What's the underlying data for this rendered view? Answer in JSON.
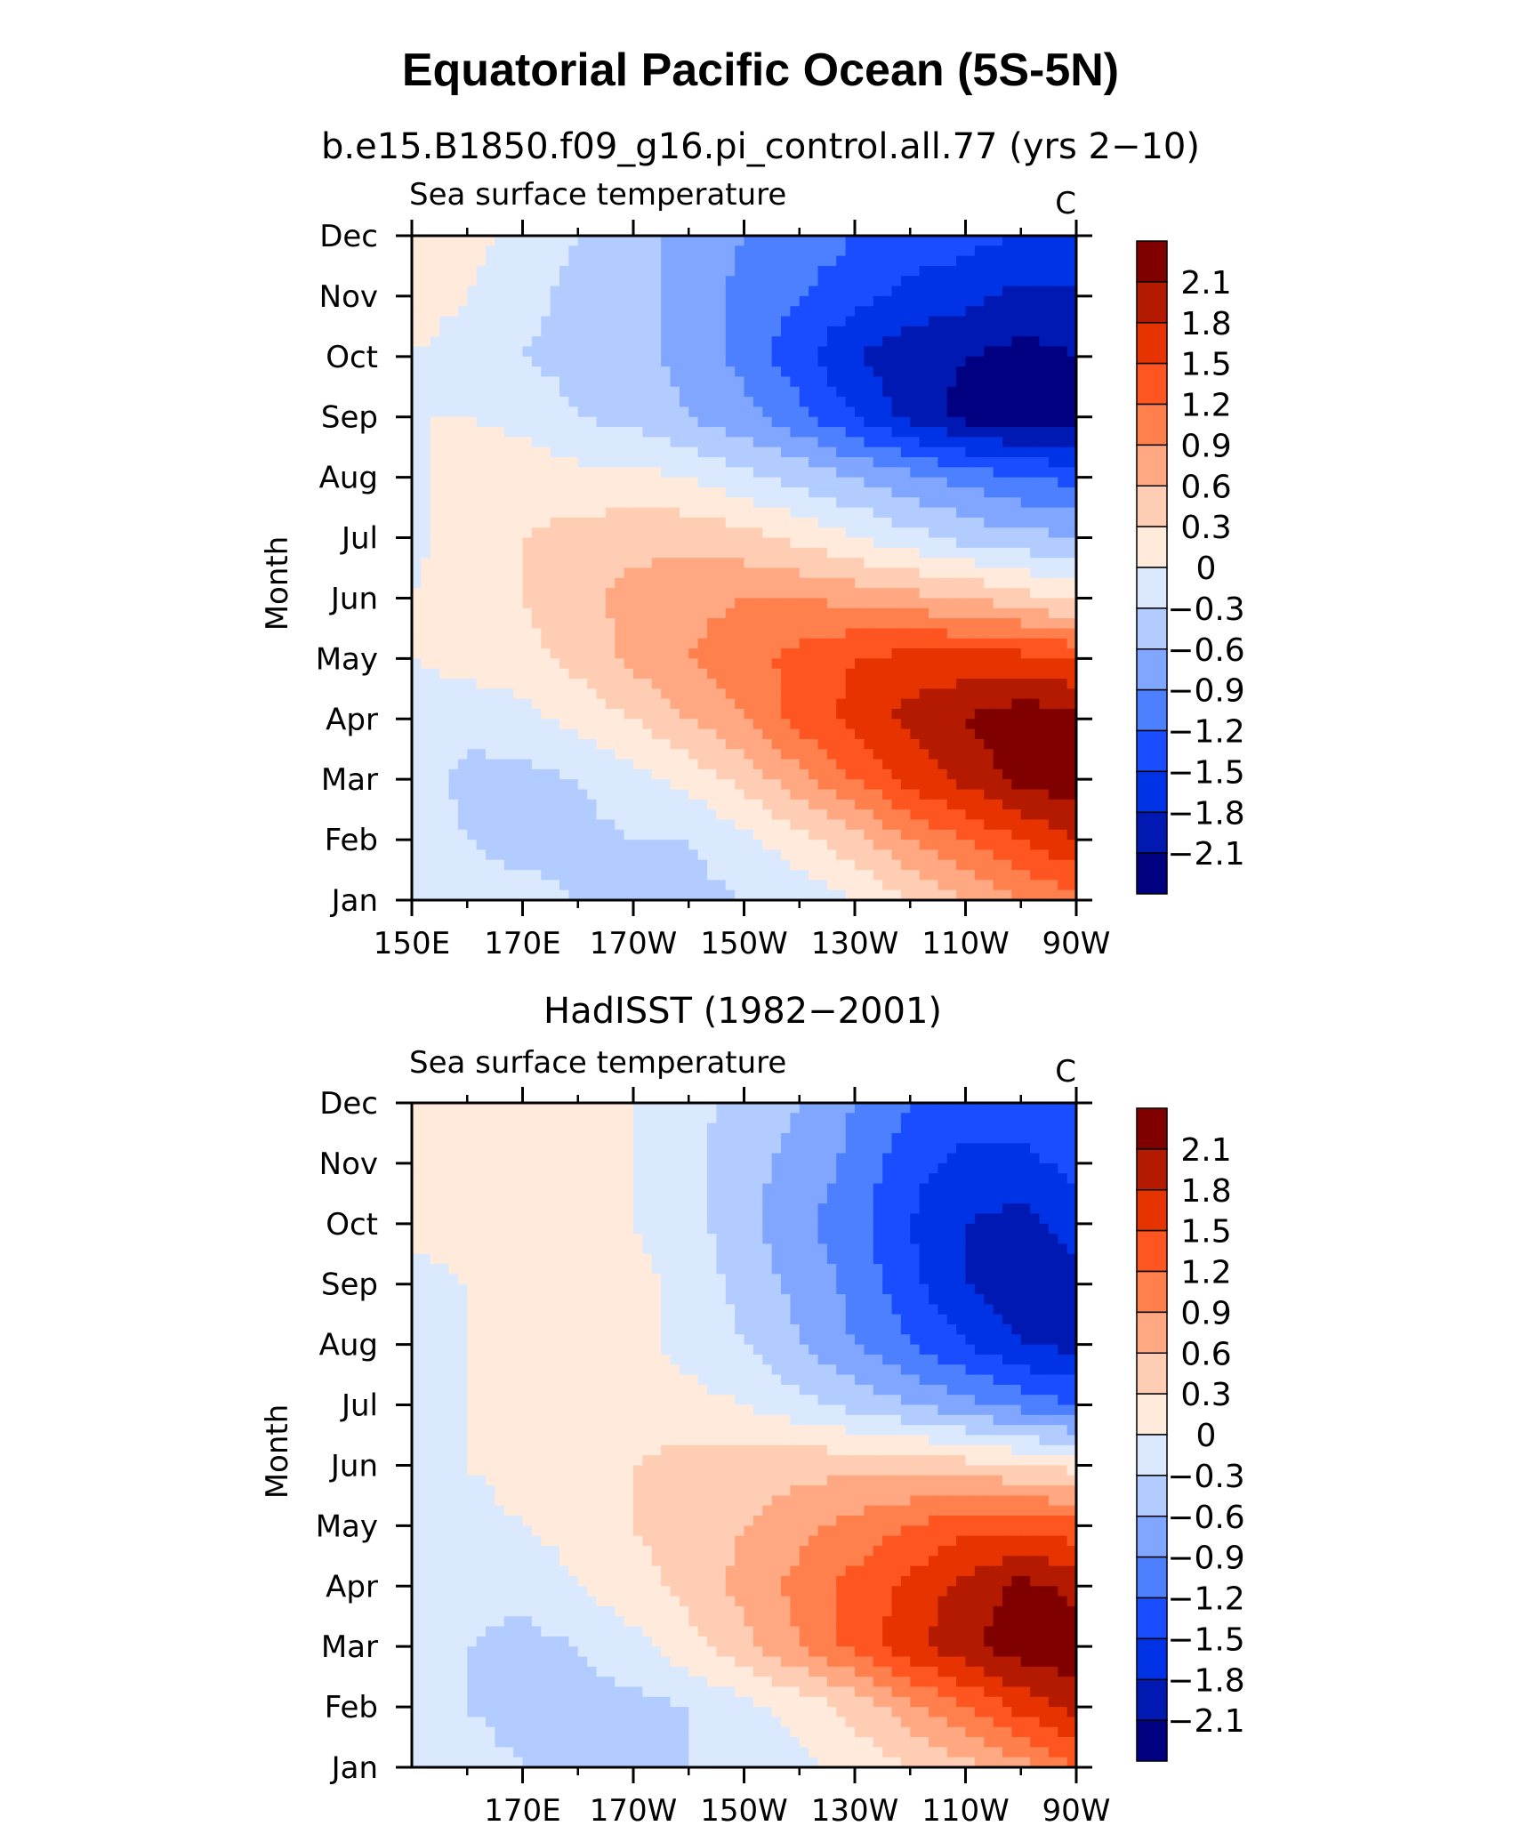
{
  "title": "Equatorial Pacific Ocean (5S-5N)",
  "chart_data": [
    {
      "type": "heatmap",
      "panel_title": "b.e15.B1850.f09_g16.pi_control.all.77 (yrs 2−10)",
      "variable_label": "Sea surface temperature",
      "units_label": "C",
      "ylabel": "Month",
      "x_tick_labels": [
        "150E",
        "170E",
        "170W",
        "150W",
        "130W",
        "110W",
        "90W"
      ],
      "x_tick_positions": [
        150,
        170,
        190,
        210,
        230,
        250,
        270
      ],
      "xlim": [
        150,
        270
      ],
      "y_tick_labels": [
        "Jan",
        "Feb",
        "Mar",
        "Apr",
        "May",
        "Jun",
        "Jul",
        "Aug",
        "Sep",
        "Oct",
        "Nov",
        "Dec"
      ],
      "x": [
        150,
        160,
        170,
        180,
        190,
        200,
        210,
        220,
        230,
        240,
        250,
        260,
        270
      ],
      "y": [
        1,
        2,
        3,
        4,
        5,
        6,
        7,
        8,
        9,
        10,
        11,
        12
      ],
      "z": [
        [
          -0.1,
          -0.2,
          -0.2,
          -0.3,
          -0.4,
          -0.4,
          -0.3,
          -0.2,
          0.0,
          0.3,
          0.6,
          0.9,
          1.1
        ],
        [
          -0.1,
          -0.3,
          -0.4,
          -0.4,
          -0.3,
          -0.3,
          -0.1,
          0.2,
          0.5,
          0.9,
          1.2,
          1.5,
          1.8
        ],
        [
          -0.1,
          -0.4,
          -0.4,
          -0.3,
          -0.1,
          0.1,
          0.4,
          0.8,
          1.2,
          1.6,
          1.9,
          2.2,
          2.3
        ],
        [
          -0.1,
          -0.2,
          -0.1,
          0.1,
          0.3,
          0.6,
          0.9,
          1.3,
          1.6,
          1.9,
          2.1,
          2.3,
          2.2
        ],
        [
          0.0,
          0.1,
          0.2,
          0.4,
          0.7,
          0.9,
          1.1,
          1.3,
          1.5,
          1.6,
          1.6,
          1.6,
          1.5
        ],
        [
          0.0,
          0.2,
          0.3,
          0.5,
          0.7,
          0.8,
          0.9,
          0.9,
          0.8,
          0.7,
          0.6,
          0.4,
          0.2
        ],
        [
          -0.1,
          0.2,
          0.3,
          0.4,
          0.5,
          0.5,
          0.4,
          0.2,
          0.0,
          -0.2,
          -0.4,
          -0.5,
          -0.6
        ],
        [
          -0.1,
          0.2,
          0.2,
          0.1,
          0.1,
          0.0,
          -0.2,
          -0.4,
          -0.6,
          -0.8,
          -1.0,
          -1.2,
          -1.3
        ],
        [
          0.0,
          0.0,
          -0.1,
          -0.3,
          -0.4,
          -0.6,
          -0.8,
          -1.1,
          -1.5,
          -1.9,
          -2.2,
          -2.3,
          -2.2
        ],
        [
          0.0,
          -0.1,
          -0.3,
          -0.4,
          -0.5,
          -0.7,
          -1.0,
          -1.4,
          -1.8,
          -2.0,
          -2.1,
          -2.2,
          -2.1
        ],
        [
          0.1,
          0.0,
          -0.2,
          -0.4,
          -0.5,
          -0.7,
          -1.0,
          -1.2,
          -1.4,
          -1.6,
          -1.7,
          -1.9,
          -1.9
        ],
        [
          0.2,
          0.1,
          -0.1,
          -0.3,
          -0.5,
          -0.7,
          -0.9,
          -1.0,
          -1.2,
          -1.3,
          -1.4,
          -1.5,
          -1.5
        ]
      ],
      "colorbar": {
        "levels": [
          -2.1,
          -1.8,
          -1.5,
          -1.2,
          -0.9,
          -0.6,
          -0.3,
          0,
          0.3,
          0.6,
          0.9,
          1.2,
          1.5,
          1.8,
          2.1
        ],
        "level_labels": [
          "−2.1",
          "−1.8",
          "−1.5",
          "−1.2",
          "−0.9",
          "−0.6",
          "−0.3",
          "0",
          "0.3",
          "0.6",
          "0.9",
          "1.2",
          "1.5",
          "1.8",
          "2.1"
        ],
        "colors": [
          "#000080",
          "#0019b3",
          "#0033e6",
          "#1a4dff",
          "#4d80ff",
          "#80a6ff",
          "#b3ccff",
          "#dbe9ff",
          "#ffeadb",
          "#ffcdb3",
          "#ffa882",
          "#ff7f4d",
          "#ff5521",
          "#e63300",
          "#b31a00",
          "#800000"
        ]
      }
    },
    {
      "type": "heatmap",
      "panel_title": "HadISST (1982−2001)",
      "variable_label": "Sea surface temperature",
      "units_label": "C",
      "ylabel": "Month",
      "x_tick_labels": [
        "170E",
        "170W",
        "150W",
        "130W",
        "110W",
        "90W"
      ],
      "x_tick_positions": [
        170,
        190,
        210,
        230,
        250,
        270
      ],
      "xlim": [
        150,
        270
      ],
      "y_tick_labels": [
        "Jan",
        "Feb",
        "Mar",
        "Apr",
        "May",
        "Jun",
        "Jul",
        "Aug",
        "Sep",
        "Oct",
        "Nov",
        "Dec"
      ],
      "x": [
        150,
        160,
        170,
        180,
        190,
        200,
        210,
        220,
        230,
        240,
        250,
        260,
        270
      ],
      "y": [
        1,
        2,
        3,
        4,
        5,
        6,
        7,
        8,
        9,
        10,
        11,
        12
      ],
      "z": [
        [
          -0.1,
          -0.2,
          -0.3,
          -0.4,
          -0.4,
          -0.3,
          -0.2,
          -0.1,
          0.1,
          0.3,
          0.5,
          0.8,
          1.2
        ],
        [
          -0.1,
          -0.3,
          -0.4,
          -0.4,
          -0.4,
          -0.3,
          -0.1,
          0.1,
          0.4,
          0.8,
          1.2,
          1.6,
          1.9
        ],
        [
          -0.1,
          -0.3,
          -0.4,
          -0.3,
          -0.1,
          0.2,
          0.5,
          0.9,
          1.3,
          1.7,
          2.0,
          2.3,
          2.3
        ],
        [
          -0.1,
          -0.2,
          -0.2,
          0.0,
          0.2,
          0.4,
          0.7,
          1.0,
          1.3,
          1.6,
          1.9,
          2.2,
          2.0
        ],
        [
          0.0,
          -0.1,
          0.0,
          0.1,
          0.3,
          0.4,
          0.6,
          0.8,
          1.0,
          1.2,
          1.4,
          1.4,
          1.3
        ],
        [
          -0.1,
          0.0,
          0.1,
          0.2,
          0.3,
          0.4,
          0.4,
          0.5,
          0.5,
          0.5,
          0.4,
          0.3,
          0.2
        ],
        [
          -0.1,
          0.0,
          0.1,
          0.2,
          0.2,
          0.1,
          0.0,
          -0.2,
          -0.4,
          -0.6,
          -0.8,
          -1.0,
          -1.2
        ],
        [
          -0.1,
          0.0,
          0.2,
          0.2,
          0.1,
          -0.1,
          -0.3,
          -0.6,
          -0.9,
          -1.2,
          -1.5,
          -1.8,
          -1.9
        ],
        [
          -0.1,
          0.0,
          0.2,
          0.3,
          0.1,
          -0.1,
          -0.4,
          -0.7,
          -1.0,
          -1.4,
          -1.8,
          -2.0,
          -1.9
        ],
        [
          0.1,
          0.1,
          0.1,
          0.1,
          0.0,
          -0.2,
          -0.5,
          -0.8,
          -1.1,
          -1.5,
          -1.8,
          -1.9,
          -1.7
        ],
        [
          0.1,
          0.1,
          0.1,
          0.1,
          0.0,
          -0.2,
          -0.5,
          -0.7,
          -1.0,
          -1.4,
          -1.6,
          -1.6,
          -1.4
        ],
        [
          0.1,
          0.1,
          0.1,
          0.1,
          0.0,
          -0.2,
          -0.4,
          -0.6,
          -0.9,
          -1.2,
          -1.3,
          -1.3,
          -1.2
        ]
      ],
      "colorbar": {
        "levels": [
          -2.1,
          -1.8,
          -1.5,
          -1.2,
          -0.9,
          -0.6,
          -0.3,
          0,
          0.3,
          0.6,
          0.9,
          1.2,
          1.5,
          1.8,
          2.1
        ],
        "level_labels": [
          "−2.1",
          "−1.8",
          "−1.5",
          "−1.2",
          "−0.9",
          "−0.6",
          "−0.3",
          "0",
          "0.3",
          "0.6",
          "0.9",
          "1.2",
          "1.5",
          "1.8",
          "2.1"
        ],
        "colors": [
          "#000080",
          "#0019b3",
          "#0033e6",
          "#1a4dff",
          "#4d80ff",
          "#80a6ff",
          "#b3ccff",
          "#dbe9ff",
          "#ffeadb",
          "#ffcdb3",
          "#ffa882",
          "#ff7f4d",
          "#ff5521",
          "#e63300",
          "#b31a00",
          "#800000"
        ]
      }
    }
  ]
}
